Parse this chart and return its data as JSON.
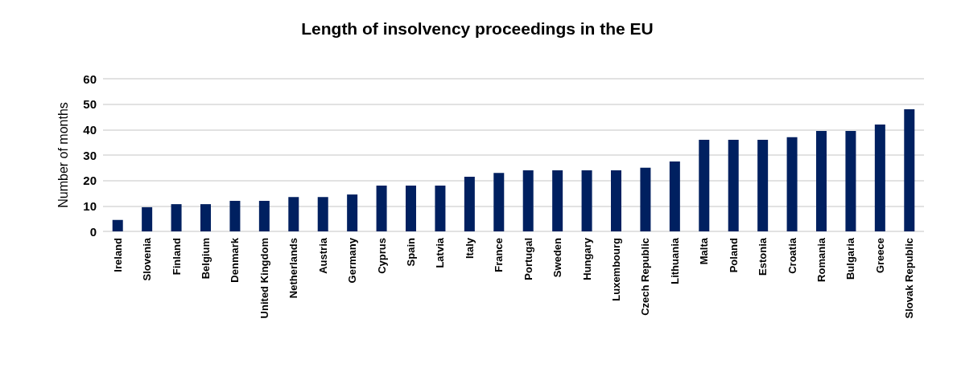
{
  "chart_data": {
    "type": "bar",
    "title": "Length of insolvency proceedings in the EU",
    "ylabel": "Number of months",
    "categories": [
      "Ireland",
      "Slovenia",
      "Finland",
      "Belgium",
      "Denmark",
      "United Kingdom",
      "Netherlands",
      "Austria",
      "Germany",
      "Cyprus",
      "Spain",
      "Latvia",
      "Italy",
      "France",
      "Portugal",
      "Sweden",
      "Hungary",
      "Luxembourg",
      "Czech Republic",
      "Lithuania",
      "Malta",
      "Poland",
      "Estonia",
      "Croatia",
      "Romania",
      "Bulgaria",
      "Greece",
      "Slovak Republic"
    ],
    "values": [
      4.5,
      9.5,
      10.7,
      10.7,
      12,
      12,
      13.5,
      13.5,
      14.5,
      18,
      18,
      18,
      21.5,
      23,
      24,
      24,
      24,
      24,
      25,
      27.5,
      36,
      36,
      36,
      37,
      39.5,
      39.5,
      42,
      48
    ],
    "color": "#002060",
    "ylim": [
      0,
      60
    ],
    "yticks": [
      0,
      10,
      20,
      30,
      40,
      50,
      60
    ],
    "grid": "y"
  }
}
